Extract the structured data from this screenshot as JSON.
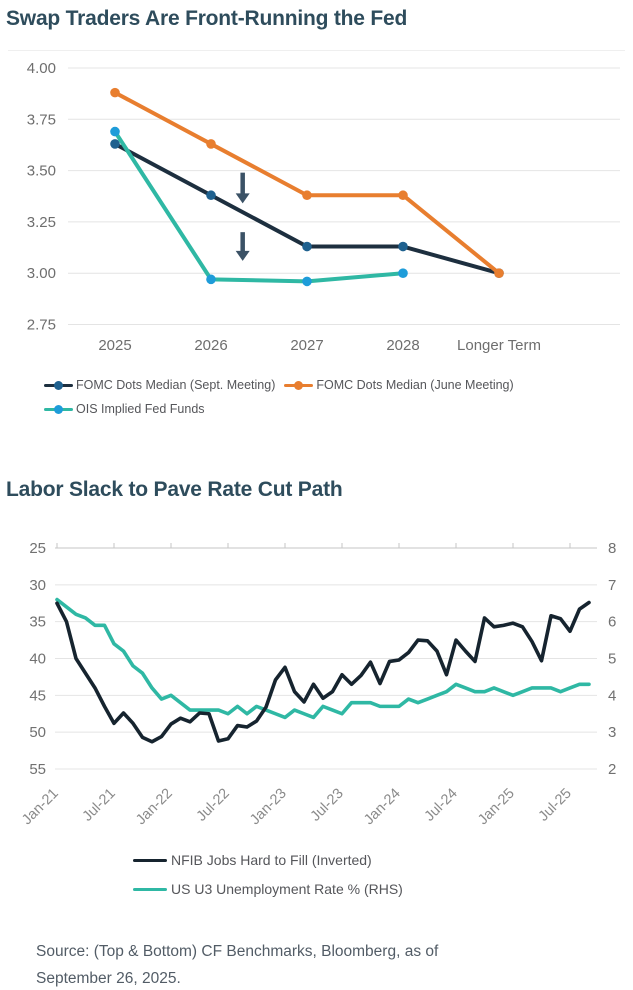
{
  "page": {
    "background": "#ffffff"
  },
  "source": {
    "text": "Source: (Top & Bottom) CF Benchmarks, Bloomberg, as of September 26, 2025."
  },
  "chart_data": [
    {
      "type": "line",
      "id": "fed-dots",
      "title": "Swap Traders Are Front-Running the Fed",
      "categories": [
        "2025",
        "2026",
        "2027",
        "2028",
        "Longer Term"
      ],
      "series": [
        {
          "id": "fomc-sept",
          "name": "FOMC Dots Median (Sept. Meeting)",
          "color": "#1d2f3f",
          "marker_color": "#1f618f",
          "values": [
            3.63,
            3.38,
            3.13,
            3.13,
            3.0
          ]
        },
        {
          "id": "fomc-june",
          "name": "FOMC Dots Median (June Meeting)",
          "color": "#e87e2f",
          "marker_color": "#e87e2f",
          "values": [
            3.88,
            3.63,
            3.38,
            3.38,
            3.0
          ]
        },
        {
          "id": "ois",
          "name": "OIS Implied Fed Funds",
          "color": "#2fb8a4",
          "marker_color": "#1e9cd9",
          "values": [
            3.69,
            2.97,
            2.96,
            3.0,
            null
          ]
        }
      ],
      "ylim": [
        2.75,
        4.0
      ],
      "yticks": [
        4.0,
        3.75,
        3.5,
        3.25,
        3.0,
        2.75
      ],
      "ytick_labels": [
        "4.00",
        "3.75",
        "3.50",
        "3.25",
        "3.00",
        "2.75"
      ],
      "grid": true,
      "legend_position": "bottom",
      "annotations": {
        "color": "#3b5266",
        "arrows": [
          {
            "shape": "down-arrow",
            "x_index": 1.33,
            "y_from": 3.49,
            "y_to": 3.34
          },
          {
            "shape": "down-arrow",
            "x_index": 1.33,
            "y_from": 3.2,
            "y_to": 3.06
          }
        ]
      }
    },
    {
      "type": "line",
      "id": "labor-slack",
      "title": "Labor Slack to Pave Rate Cut Path",
      "x": [
        "Jan-21",
        "Feb-21",
        "Mar-21",
        "Apr-21",
        "May-21",
        "Jun-21",
        "Jul-21",
        "Aug-21",
        "Sep-21",
        "Oct-21",
        "Nov-21",
        "Dec-21",
        "Jan-22",
        "Feb-22",
        "Mar-22",
        "Apr-22",
        "May-22",
        "Jun-22",
        "Jul-22",
        "Aug-22",
        "Sep-22",
        "Oct-22",
        "Nov-22",
        "Dec-22",
        "Jan-23",
        "Feb-23",
        "Mar-23",
        "Apr-23",
        "May-23",
        "Jun-23",
        "Jul-23",
        "Aug-23",
        "Sep-23",
        "Oct-23",
        "Nov-23",
        "Dec-23",
        "Jan-24",
        "Feb-24",
        "Mar-24",
        "Apr-24",
        "May-24",
        "Jun-24",
        "Jul-24",
        "Aug-24",
        "Sep-24",
        "Oct-24",
        "Nov-24",
        "Dec-24",
        "Jan-25",
        "Feb-25",
        "Mar-25",
        "Apr-25",
        "May-25",
        "Jun-25",
        "Jul-25",
        "Aug-25",
        "Sep-25"
      ],
      "xtick_labels": [
        "Jan-21",
        "Jul-21",
        "Jan-22",
        "Jul-22",
        "Jan-23",
        "Jul-23",
        "Jan-24",
        "Jul-24",
        "Jan-25",
        "Jul-25"
      ],
      "xtick_indices": [
        0,
        6,
        12,
        18,
        24,
        30,
        36,
        42,
        48,
        54
      ],
      "left_axis": {
        "ticks": [
          25,
          30,
          35,
          40,
          45,
          50,
          55
        ],
        "range": [
          25,
          55
        ],
        "inverted_display": true
      },
      "right_axis": {
        "ticks": [
          8,
          7,
          6,
          5,
          4,
          3,
          2
        ],
        "range": [
          2,
          8
        ]
      },
      "grid": true,
      "legend_position": "bottom",
      "series": [
        {
          "id": "nfib",
          "name": "NFIB Jobs Hard to Fill (Inverted)",
          "axis": "left",
          "color": "#16242f",
          "values": [
            32.5,
            35,
            40,
            42,
            44,
            46.5,
            48.8,
            47.4,
            48.8,
            50.7,
            51.3,
            50.6,
            48.9,
            48.1,
            48.6,
            47.4,
            47.5,
            51.2,
            50.9,
            49.1,
            49.3,
            48.5,
            46.6,
            42.9,
            41.2,
            44.5,
            45.9,
            43.5,
            45.4,
            44.5,
            42.2,
            43.5,
            42.3,
            40.5,
            43.4,
            40.4,
            40.2,
            39.2,
            37.5,
            37.6,
            39,
            42.2,
            37.5,
            39,
            40.4,
            34.5,
            35.7,
            35.5,
            35.2,
            35.7,
            37.7,
            40.3,
            34.2,
            34.6,
            36.3,
            33.3,
            32.4
          ]
        },
        {
          "id": "u3",
          "name": "US U3 Unemployment Rate % (RHS)",
          "axis": "right",
          "color": "#2fb8a4",
          "values": [
            6.6,
            6.4,
            6.2,
            6.1,
            5.9,
            5.9,
            5.4,
            5.2,
            4.8,
            4.6,
            4.2,
            3.9,
            4.0,
            3.8,
            3.6,
            3.6,
            3.6,
            3.6,
            3.5,
            3.7,
            3.5,
            3.7,
            3.6,
            3.5,
            3.4,
            3.6,
            3.5,
            3.4,
            3.7,
            3.6,
            3.5,
            3.8,
            3.8,
            3.8,
            3.7,
            3.7,
            3.7,
            3.9,
            3.8,
            3.9,
            4.0,
            4.1,
            4.3,
            4.2,
            4.1,
            4.1,
            4.2,
            4.1,
            4.0,
            4.1,
            4.2,
            4.2,
            4.2,
            4.1,
            4.2,
            4.3,
            4.3
          ]
        }
      ]
    }
  ]
}
